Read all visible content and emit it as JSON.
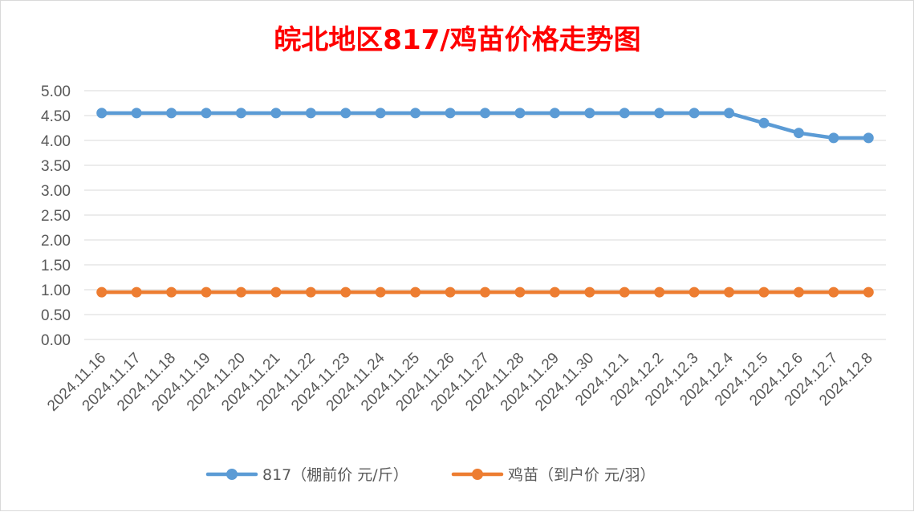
{
  "chart_data": {
    "type": "line",
    "title": "皖北地区817/鸡苗价格走势图",
    "xlabel": "",
    "ylabel": "",
    "categories": [
      "2024.11.16",
      "2024.11.17",
      "2024.11.18",
      "2024.11.19",
      "2024.11.20",
      "2024.11.21",
      "2024.11.22",
      "2024.11.23",
      "2024.11.24",
      "2024.11.25",
      "2024.11.26",
      "2024.11.27",
      "2024.11.28",
      "2024.11.29",
      "2024.11.30",
      "2024.12.1",
      "2024.12.2",
      "2024.12.3",
      "2024.12.4",
      "2024.12.5",
      "2024.12.6",
      "2024.12.7",
      "2024.12.8"
    ],
    "ylim": [
      0,
      5
    ],
    "yticks": [
      "0.00",
      "0.50",
      "1.00",
      "1.50",
      "2.00",
      "2.50",
      "3.00",
      "3.50",
      "4.00",
      "4.50",
      "5.00"
    ],
    "grid": true,
    "legend_position": "bottom",
    "series": [
      {
        "name": "817（棚前价 元/斤）",
        "color": "#5b9bd5",
        "values": [
          4.55,
          4.55,
          4.55,
          4.55,
          4.55,
          4.55,
          4.55,
          4.55,
          4.55,
          4.55,
          4.55,
          4.55,
          4.55,
          4.55,
          4.55,
          4.55,
          4.55,
          4.55,
          4.55,
          4.35,
          4.15,
          4.05,
          4.05
        ]
      },
      {
        "name": "鸡苗（到户价 元/羽）",
        "color": "#ed7d31",
        "values": [
          0.95,
          0.95,
          0.95,
          0.95,
          0.95,
          0.95,
          0.95,
          0.95,
          0.95,
          0.95,
          0.95,
          0.95,
          0.95,
          0.95,
          0.95,
          0.95,
          0.95,
          0.95,
          0.95,
          0.95,
          0.95,
          0.95,
          0.95
        ]
      }
    ]
  }
}
